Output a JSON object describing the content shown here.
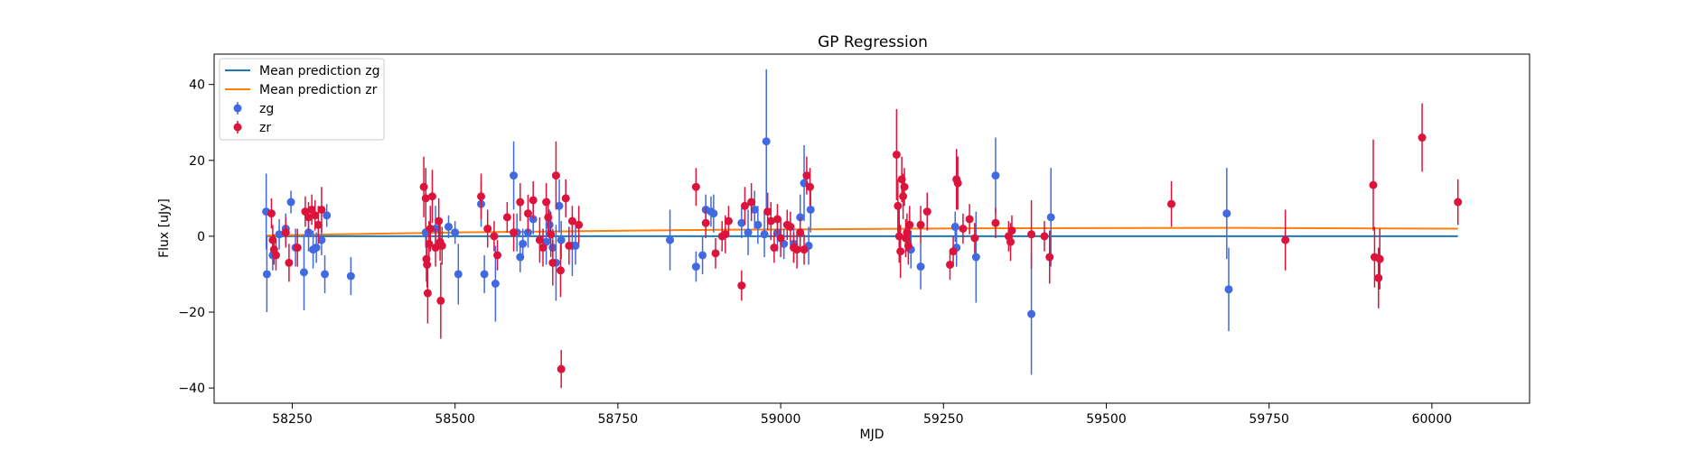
{
  "chart_data": {
    "type": "scatter",
    "title": "GP Regression",
    "xlabel": "MJD",
    "ylabel": "Flux [uJy]",
    "xlim": [
      58130,
      60150
    ],
    "ylim": [
      -44,
      48
    ],
    "xticks": [
      58250,
      58500,
      58750,
      59000,
      59250,
      59500,
      59750,
      60000
    ],
    "yticks": [
      -40,
      -20,
      0,
      20,
      40
    ],
    "grid": false,
    "legend_position": "top-left",
    "lines": [
      {
        "name": "Mean prediction zg",
        "color": "#1f77b4",
        "x": [
          58210,
          60040
        ],
        "y": [
          0.0,
          0.0
        ]
      },
      {
        "name": "Mean prediction zr",
        "color": "#ff7f0e",
        "x": [
          58210,
          58500,
          58900,
          59300,
          59700,
          60040
        ],
        "y": [
          0.2,
          1.0,
          1.7,
          2.1,
          2.2,
          2.0
        ]
      }
    ],
    "series": [
      {
        "name": "zg",
        "color": "#4169e1",
        "points": [
          [
            58210,
            6.5,
            10
          ],
          [
            58211,
            -10,
            10
          ],
          [
            58220,
            -5,
            4
          ],
          [
            58230,
            0.5,
            4
          ],
          [
            58240,
            2,
            4
          ],
          [
            58248,
            9,
            3
          ],
          [
            58255,
            -3,
            5
          ],
          [
            58268,
            -9.5,
            10
          ],
          [
            58275,
            1,
            5
          ],
          [
            58282,
            -3.5,
            5
          ],
          [
            58287,
            -3,
            4
          ],
          [
            58295,
            -1,
            4
          ],
          [
            58300,
            -10,
            5
          ],
          [
            58303,
            5.5,
            3
          ],
          [
            58340,
            -10.5,
            5
          ],
          [
            58455,
            1,
            4
          ],
          [
            58470,
            2,
            6
          ],
          [
            58490,
            2.5,
            3
          ],
          [
            58500,
            1,
            3
          ],
          [
            58505,
            -10,
            8
          ],
          [
            58540,
            8.5,
            6
          ],
          [
            58545,
            -10,
            5
          ],
          [
            58562,
            -12.5,
            10
          ],
          [
            58590,
            16,
            9
          ],
          [
            58595,
            1,
            5
          ],
          [
            58600,
            -5.5,
            4
          ],
          [
            58604,
            -2,
            4
          ],
          [
            58612,
            1,
            4
          ],
          [
            58620,
            4.5,
            4
          ],
          [
            58640,
            -1.5,
            6
          ],
          [
            58645,
            3,
            4
          ],
          [
            58650,
            -3,
            5
          ],
          [
            58655,
            -7,
            10
          ],
          [
            58660,
            8,
            7
          ],
          [
            58663,
            -1,
            5
          ],
          [
            58680,
            -2.5,
            8
          ],
          [
            58685,
            -2.5,
            5
          ],
          [
            58830,
            -1,
            8
          ],
          [
            58870,
            -8,
            4
          ],
          [
            58880,
            -5,
            5
          ],
          [
            58885,
            7,
            4
          ],
          [
            58893,
            6.5,
            4
          ],
          [
            58897,
            6,
            5
          ],
          [
            58940,
            3.5,
            4
          ],
          [
            58950,
            1,
            6
          ],
          [
            58960,
            7,
            5
          ],
          [
            58965,
            3,
            5
          ],
          [
            58975,
            0.5,
            6
          ],
          [
            58978,
            25,
            19
          ],
          [
            58995,
            1,
            5
          ],
          [
            59005,
            -2,
            4
          ],
          [
            59020,
            -2,
            5
          ],
          [
            59030,
            5,
            6
          ],
          [
            59036,
            14,
            10
          ],
          [
            59043,
            -2.5,
            5
          ],
          [
            59046,
            7,
            6
          ],
          [
            59200,
            -3.5,
            5
          ],
          [
            59215,
            -8,
            6
          ],
          [
            59268,
            2.5,
            4
          ],
          [
            59270,
            -3,
            5
          ],
          [
            59300,
            -5.5,
            12
          ],
          [
            59330,
            16,
            10
          ],
          [
            59385,
            -20.5,
            16
          ],
          [
            59415,
            5,
            13
          ],
          [
            59685,
            6,
            12
          ],
          [
            59688,
            -14,
            11
          ]
        ]
      },
      {
        "name": "zr",
        "color": "#dc143c",
        "points": [
          [
            58218,
            6,
            4
          ],
          [
            58220,
            -1,
            4
          ],
          [
            58222,
            -3.5,
            4
          ],
          [
            58225,
            -5,
            4
          ],
          [
            58240,
            1,
            4
          ],
          [
            58245,
            -7,
            5
          ],
          [
            58258,
            -3,
            5
          ],
          [
            58270,
            6.5,
            4
          ],
          [
            58275,
            5,
            4
          ],
          [
            58280,
            7,
            4
          ],
          [
            58285,
            5.5,
            4
          ],
          [
            58290,
            3,
            5
          ],
          [
            58295,
            7,
            6
          ],
          [
            58452,
            13,
            8
          ],
          [
            58455,
            10,
            8
          ],
          [
            58456,
            -6,
            6
          ],
          [
            58457,
            -7.5,
            6
          ],
          [
            58458,
            -15,
            8
          ],
          [
            58460,
            -2,
            6
          ],
          [
            58462,
            2,
            6
          ],
          [
            58465,
            10.5,
            7
          ],
          [
            58470,
            -3,
            5
          ],
          [
            58475,
            4,
            6
          ],
          [
            58477,
            -1.5,
            5
          ],
          [
            58478,
            -17,
            10
          ],
          [
            58480,
            -2.5,
            5
          ],
          [
            58540,
            10.5,
            6
          ],
          [
            58550,
            2,
            5
          ],
          [
            58560,
            0,
            4
          ],
          [
            58565,
            -5,
            4
          ],
          [
            58580,
            5,
            4
          ],
          [
            58590,
            1,
            5
          ],
          [
            58600,
            9,
            5
          ],
          [
            58612,
            6,
            5
          ],
          [
            58620,
            9.5,
            5
          ],
          [
            58630,
            -1,
            6
          ],
          [
            58635,
            -3,
            5
          ],
          [
            58640,
            9,
            5
          ],
          [
            58643,
            5,
            5
          ],
          [
            58647,
            0.5,
            6
          ],
          [
            58650,
            -7,
            6
          ],
          [
            58655,
            16,
            9
          ],
          [
            58662,
            -9,
            7
          ],
          [
            58663,
            -35,
            5
          ],
          [
            58670,
            10,
            5
          ],
          [
            58675,
            -2.5,
            5
          ],
          [
            58680,
            4,
            4
          ],
          [
            58690,
            3,
            5
          ],
          [
            58870,
            13,
            5
          ],
          [
            58885,
            3.5,
            4
          ],
          [
            58900,
            -4.5,
            4
          ],
          [
            58910,
            0,
            4
          ],
          [
            58915,
            0.5,
            5
          ],
          [
            58920,
            4,
            4
          ],
          [
            58940,
            -13,
            4
          ],
          [
            58945,
            8,
            5
          ],
          [
            58955,
            9,
            5
          ],
          [
            58980,
            6.5,
            5
          ],
          [
            58985,
            4,
            5
          ],
          [
            58990,
            -3,
            4
          ],
          [
            58995,
            4.5,
            4
          ],
          [
            59000,
            -0.5,
            5
          ],
          [
            59010,
            3,
            4
          ],
          [
            59015,
            2.5,
            4
          ],
          [
            59020,
            -3,
            4
          ],
          [
            59025,
            -3.5,
            5
          ],
          [
            59030,
            1,
            4
          ],
          [
            59036,
            -3.5,
            4
          ],
          [
            59040,
            16,
            5
          ],
          [
            59045,
            13,
            5
          ],
          [
            59178,
            21.5,
            12
          ],
          [
            59180,
            8,
            7
          ],
          [
            59182,
            0,
            7
          ],
          [
            59184,
            -4,
            7
          ],
          [
            59186,
            15,
            6
          ],
          [
            59188,
            10.5,
            6
          ],
          [
            59190,
            13,
            5
          ],
          [
            59192,
            -0.5,
            5
          ],
          [
            59194,
            1,
            5
          ],
          [
            59196,
            -2.5,
            5
          ],
          [
            59198,
            3,
            5
          ],
          [
            59215,
            3,
            5
          ],
          [
            59225,
            6.5,
            5
          ],
          [
            59260,
            -7.5,
            4
          ],
          [
            59265,
            -4,
            4
          ],
          [
            59270,
            15,
            8
          ],
          [
            59272,
            14,
            7
          ],
          [
            59280,
            2,
            4
          ],
          [
            59290,
            4.5,
            4
          ],
          [
            59298,
            -0.5,
            4
          ],
          [
            59330,
            3.5,
            4
          ],
          [
            59350,
            0,
            4
          ],
          [
            59353,
            -1.5,
            5
          ],
          [
            59355,
            1.5,
            4
          ],
          [
            59385,
            0.5,
            9
          ],
          [
            59405,
            0,
            4
          ],
          [
            59413,
            -5.5,
            7
          ],
          [
            59600,
            8.5,
            6
          ],
          [
            59775,
            -1,
            8
          ],
          [
            59910,
            13.5,
            12
          ],
          [
            59912,
            -5.5,
            8
          ],
          [
            59918,
            -11,
            8
          ],
          [
            59920,
            -6,
            8
          ],
          [
            59985,
            26,
            9
          ],
          [
            60040,
            9,
            6
          ]
        ]
      }
    ]
  }
}
